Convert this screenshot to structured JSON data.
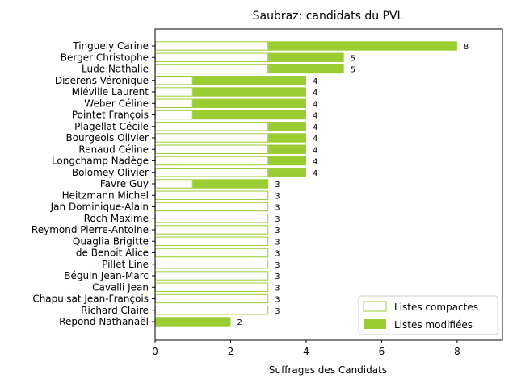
{
  "chart_data": {
    "type": "bar",
    "orientation": "horizontal",
    "stacked": true,
    "title": "Saubraz: candidats du PVL",
    "xlabel": "Suffrages des Candidats",
    "ylabel": "",
    "xlim": [
      0,
      9.2
    ],
    "xticks": [
      "0",
      "2",
      "4",
      "6",
      "8"
    ],
    "legend_position": "bottom-right",
    "colors": {
      "accent": "#9acd32",
      "background": "#ffffff"
    },
    "categories": [
      "Tinguely Carine",
      "Berger Christophe",
      "Lude Nathalie",
      "Diserens Véronique",
      "Miéville Laurent",
      "Weber Céline",
      "Pointet François",
      "Plagellat Cécile",
      "Bourgeois Olivier",
      "Renaud Céline",
      "Longchamp Nadège",
      "Bolomey Olivier",
      "Favre Guy",
      "Heitzmann Michel",
      "Jan Dominique-Alain",
      "Roch Maxime",
      "Reymond Pierre-Antoine",
      "Quaglia Brigitte",
      "de Benoit Alice",
      "Pillet Line",
      "Béguin Jean-Marc",
      "Cavalli Jean",
      "Chapuisat Jean-François",
      "Richard Claire",
      "Repond Nathanaël"
    ],
    "series": [
      {
        "name": "Listes compactes",
        "values": [
          3,
          3,
          3,
          1,
          1,
          1,
          1,
          3,
          3,
          3,
          3,
          3,
          1,
          3,
          3,
          3,
          3,
          3,
          3,
          3,
          3,
          3,
          3,
          3,
          0
        ]
      },
      {
        "name": "Listes modifiées",
        "values": [
          5,
          2,
          2,
          3,
          3,
          3,
          3,
          1,
          1,
          1,
          1,
          1,
          2,
          0,
          0,
          0,
          0,
          0,
          0,
          0,
          0,
          0,
          0,
          0,
          2
        ]
      }
    ],
    "totals": [
      "8",
      "5",
      "5",
      "4",
      "4",
      "4",
      "4",
      "4",
      "4",
      "4",
      "4",
      "4",
      "3",
      "3",
      "3",
      "3",
      "3",
      "3",
      "3",
      "3",
      "3",
      "3",
      "3",
      "3",
      "2"
    ]
  }
}
